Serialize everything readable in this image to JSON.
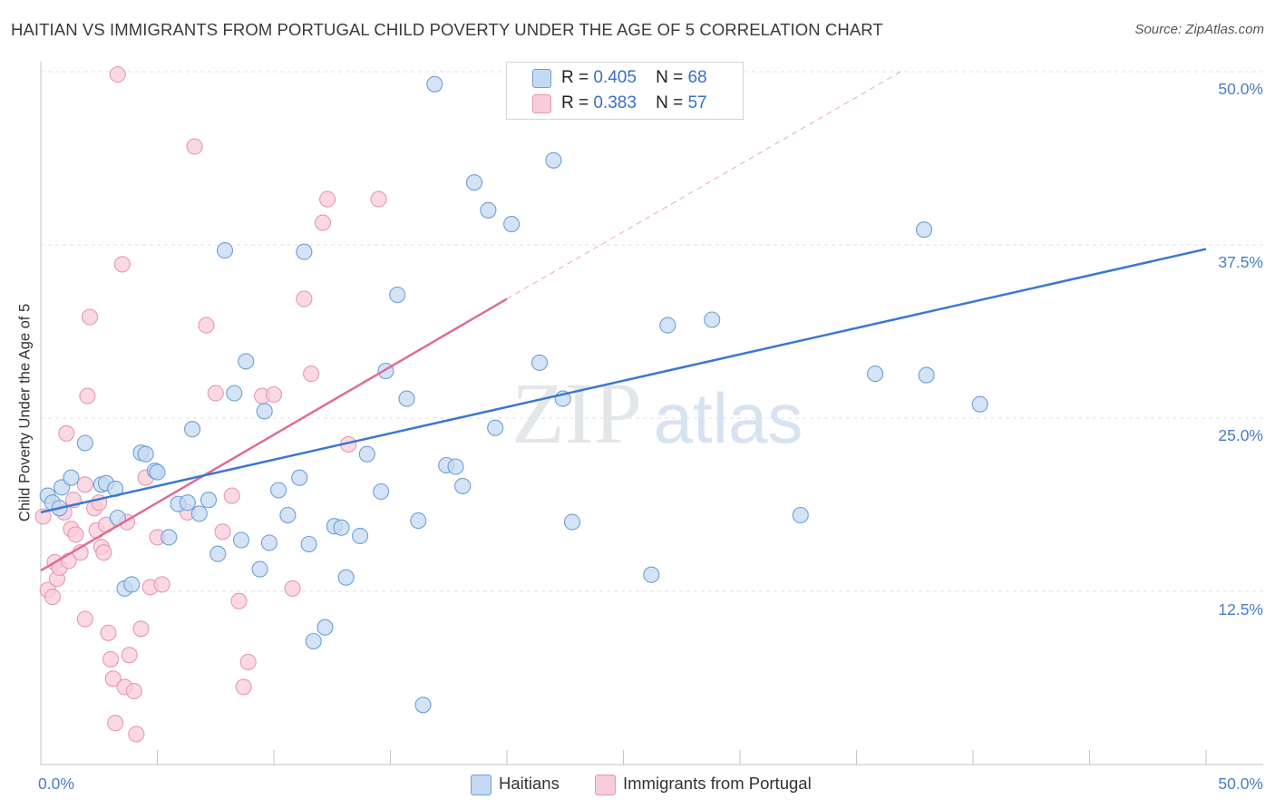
{
  "header": {
    "title": "HAITIAN VS IMMIGRANTS FROM PORTUGAL CHILD POVERTY UNDER THE AGE OF 5 CORRELATION CHART",
    "source": "Source: ZipAtlas.com"
  },
  "watermark": {
    "zip": "ZIP",
    "atlas": "atlas"
  },
  "legend": {
    "r_label": "R =",
    "n_label": "N =",
    "haitians": {
      "r": "0.405",
      "n": "68"
    },
    "portugal": {
      "r": "0.383",
      "n": "57"
    }
  },
  "bottom_legend": {
    "haitians": "Haitians",
    "portugal": "Immigrants from Portugal"
  },
  "colors": {
    "haitians_fill": "#c5d9f2",
    "haitians_stroke": "#6e9fd8",
    "haitians_line": "#3a78d0",
    "portugal_fill": "#f8ccd9",
    "portugal_stroke": "#e897b2",
    "portugal_line": "#e06b93",
    "grid": "#dde1e6",
    "tick_text": "#4a7cc7"
  },
  "chart_data": {
    "type": "scatter",
    "title": "HAITIAN VS IMMIGRANTS FROM PORTUGAL CHILD POVERTY UNDER THE AGE OF 5 CORRELATION CHART",
    "xlabel": "",
    "ylabel": "Child Poverty Under the Age of 5",
    "xlim": [
      0,
      50
    ],
    "ylim": [
      0,
      50
    ],
    "x_tick_labels": [
      "0.0%",
      "50.0%"
    ],
    "y_ticks": [
      12.5,
      25.0,
      37.5,
      50.0
    ],
    "y_tick_labels": [
      "12.5%",
      "25.0%",
      "37.5%",
      "50.0%"
    ],
    "grid": true,
    "series": [
      {
        "name": "Haitians",
        "R": 0.405,
        "N": 68,
        "trendline": {
          "x": [
            0,
            50
          ],
          "y": [
            18.2,
            37.2
          ]
        },
        "points": [
          [
            0.3,
            19.4
          ],
          [
            0.5,
            18.9
          ],
          [
            0.8,
            18.5
          ],
          [
            0.9,
            20.0
          ],
          [
            1.3,
            20.7
          ],
          [
            1.9,
            23.2
          ],
          [
            2.6,
            20.2
          ],
          [
            2.8,
            20.3
          ],
          [
            3.2,
            19.9
          ],
          [
            3.3,
            17.8
          ],
          [
            3.6,
            12.7
          ],
          [
            3.9,
            13.0
          ],
          [
            4.3,
            22.5
          ],
          [
            4.5,
            22.4
          ],
          [
            4.9,
            21.2
          ],
          [
            5.0,
            21.1
          ],
          [
            5.5,
            16.4
          ],
          [
            5.9,
            18.8
          ],
          [
            6.3,
            18.9
          ],
          [
            6.5,
            24.2
          ],
          [
            6.8,
            18.1
          ],
          [
            7.2,
            19.1
          ],
          [
            7.6,
            15.2
          ],
          [
            7.9,
            37.1
          ],
          [
            8.3,
            26.8
          ],
          [
            8.6,
            16.2
          ],
          [
            8.8,
            29.1
          ],
          [
            9.4,
            14.1
          ],
          [
            9.6,
            25.5
          ],
          [
            9.8,
            16.0
          ],
          [
            10.2,
            19.8
          ],
          [
            10.6,
            18.0
          ],
          [
            11.1,
            20.7
          ],
          [
            11.3,
            37.0
          ],
          [
            11.5,
            15.9
          ],
          [
            11.7,
            8.9
          ],
          [
            12.2,
            9.9
          ],
          [
            12.6,
            17.2
          ],
          [
            12.9,
            17.1
          ],
          [
            13.1,
            13.5
          ],
          [
            13.7,
            16.5
          ],
          [
            14.0,
            22.4
          ],
          [
            14.6,
            19.7
          ],
          [
            14.8,
            28.4
          ],
          [
            15.3,
            33.9
          ],
          [
            15.7,
            26.4
          ],
          [
            16.2,
            17.6
          ],
          [
            16.4,
            4.3
          ],
          [
            16.9,
            49.1
          ],
          [
            17.4,
            21.6
          ],
          [
            17.8,
            21.5
          ],
          [
            18.1,
            20.1
          ],
          [
            18.6,
            42.0
          ],
          [
            19.2,
            40.0
          ],
          [
            19.5,
            24.3
          ],
          [
            20.2,
            39.0
          ],
          [
            21.4,
            29.0
          ],
          [
            22.0,
            43.6
          ],
          [
            22.4,
            26.4
          ],
          [
            22.8,
            17.5
          ],
          [
            26.2,
            13.7
          ],
          [
            26.9,
            31.7
          ],
          [
            28.8,
            32.1
          ],
          [
            32.6,
            18.0
          ],
          [
            35.8,
            28.2
          ],
          [
            37.9,
            38.6
          ],
          [
            38.0,
            28.1
          ],
          [
            40.3,
            26.0
          ]
        ]
      },
      {
        "name": "Immigrants from Portugal",
        "R": 0.383,
        "N": 57,
        "trendline": {
          "x": [
            0,
            20.0
          ],
          "y": [
            14.0,
            33.6
          ]
        },
        "trendline_dashed": {
          "x": [
            20.0,
            36.9
          ],
          "y": [
            33.6,
            50.0
          ]
        },
        "points": [
          [
            0.1,
            17.9
          ],
          [
            0.3,
            12.6
          ],
          [
            0.5,
            12.1
          ],
          [
            0.6,
            14.6
          ],
          [
            0.7,
            13.4
          ],
          [
            0.8,
            14.2
          ],
          [
            1.0,
            18.2
          ],
          [
            1.1,
            23.9
          ],
          [
            1.2,
            14.7
          ],
          [
            1.3,
            17.0
          ],
          [
            1.4,
            19.1
          ],
          [
            1.5,
            16.6
          ],
          [
            1.7,
            15.3
          ],
          [
            1.9,
            20.2
          ],
          [
            1.9,
            10.5
          ],
          [
            2.0,
            26.6
          ],
          [
            2.1,
            32.3
          ],
          [
            2.3,
            18.5
          ],
          [
            2.4,
            16.9
          ],
          [
            2.5,
            18.9
          ],
          [
            2.6,
            15.7
          ],
          [
            2.7,
            15.3
          ],
          [
            2.8,
            17.3
          ],
          [
            2.9,
            9.5
          ],
          [
            3.0,
            7.6
          ],
          [
            3.1,
            6.2
          ],
          [
            3.2,
            3.0
          ],
          [
            3.3,
            49.8
          ],
          [
            3.5,
            36.1
          ],
          [
            3.6,
            5.6
          ],
          [
            3.7,
            17.5
          ],
          [
            3.8,
            7.9
          ],
          [
            4.0,
            5.3
          ],
          [
            4.1,
            2.2
          ],
          [
            4.3,
            9.8
          ],
          [
            4.5,
            20.7
          ],
          [
            4.7,
            12.8
          ],
          [
            5.0,
            16.4
          ],
          [
            5.2,
            13.0
          ],
          [
            6.3,
            18.2
          ],
          [
            6.6,
            44.6
          ],
          [
            7.1,
            31.7
          ],
          [
            7.5,
            26.8
          ],
          [
            7.8,
            16.8
          ],
          [
            8.2,
            19.4
          ],
          [
            8.5,
            11.8
          ],
          [
            8.7,
            5.6
          ],
          [
            8.9,
            7.4
          ],
          [
            9.5,
            26.6
          ],
          [
            10.0,
            26.7
          ],
          [
            10.8,
            12.7
          ],
          [
            11.3,
            33.6
          ],
          [
            11.6,
            28.2
          ],
          [
            12.1,
            39.1
          ],
          [
            12.3,
            40.8
          ],
          [
            13.2,
            23.1
          ],
          [
            14.5,
            40.8
          ]
        ]
      }
    ]
  }
}
